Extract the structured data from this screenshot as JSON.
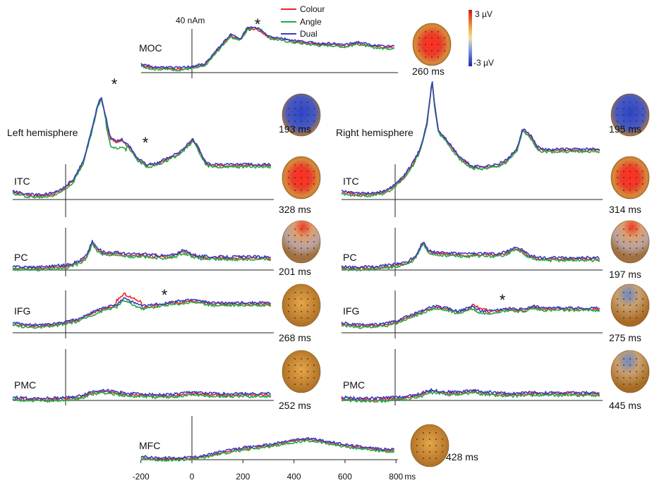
{
  "chart_data": {
    "type": "line",
    "amplitude_scale": "40 nAm",
    "x_unit": "ms",
    "x_ticks": [
      -200,
      0,
      200,
      400,
      600,
      800
    ],
    "x_tick_labels": [
      "-200",
      "0",
      "200",
      "400",
      "600",
      "800"
    ],
    "legend": [
      {
        "name": "Colour",
        "color": "#e8262a"
      },
      {
        "name": "Angle",
        "color": "#27a844"
      },
      {
        "name": "Dual",
        "color": "#3a3dbb"
      }
    ],
    "colorbar": {
      "max_label": "3 µV",
      "min_label": "-3 µV"
    },
    "significance_marker": "*",
    "hemisphere_labels": {
      "left": "Left hemisphere",
      "right": "Right hemisphere"
    },
    "panels": [
      {
        "id": "moc",
        "label": "MOC",
        "map_time": "260 ms",
        "map_color": "red",
        "star": true,
        "key": [
          [
            -200,
            10
          ],
          [
            -150,
            6
          ],
          [
            -100,
            6
          ],
          [
            -50,
            5
          ],
          [
            0,
            7
          ],
          [
            50,
            10
          ],
          [
            100,
            30
          ],
          [
            150,
            50
          ],
          [
            190,
            45
          ],
          [
            220,
            60
          ],
          [
            260,
            58
          ],
          [
            300,
            48
          ],
          [
            350,
            45
          ],
          [
            400,
            42
          ],
          [
            450,
            40
          ],
          [
            500,
            38
          ],
          [
            550,
            38
          ],
          [
            600,
            36
          ],
          [
            650,
            40
          ],
          [
            700,
            36
          ],
          [
            750,
            34
          ]
        ]
      },
      {
        "id": "itc-left",
        "label": "ITC",
        "map_time": "193 ms",
        "map_color": "blue",
        "map_time_2": "328 ms",
        "map_color_2": "red",
        "star": true,
        "star_2": true,
        "key": [
          [
            -200,
            8
          ],
          [
            -150,
            5
          ],
          [
            -100,
            4
          ],
          [
            -50,
            6
          ],
          [
            -20,
            10
          ],
          [
            30,
            22
          ],
          [
            70,
            45
          ],
          [
            100,
            78
          ],
          [
            125,
            110
          ],
          [
            140,
            120
          ],
          [
            155,
            100
          ],
          [
            175,
            72
          ],
          [
            195,
            68
          ],
          [
            220,
            70
          ],
          [
            250,
            62
          ],
          [
            280,
            48
          ],
          [
            320,
            40
          ],
          [
            360,
            42
          ],
          [
            400,
            48
          ],
          [
            450,
            55
          ],
          [
            480,
            65
          ],
          [
            500,
            70
          ],
          [
            520,
            60
          ],
          [
            550,
            42
          ],
          [
            575,
            40
          ]
        ]
      },
      {
        "id": "itc-right",
        "label": "ITC",
        "map_time": "195 ms",
        "map_color": "blue",
        "map_time_2": "314 ms",
        "map_color_2": "red",
        "star": false,
        "key": [
          [
            -200,
            8
          ],
          [
            -150,
            6
          ],
          [
            -100,
            6
          ],
          [
            -50,
            8
          ],
          [
            -20,
            12
          ],
          [
            30,
            25
          ],
          [
            70,
            42
          ],
          [
            100,
            60
          ],
          [
            125,
            90
          ],
          [
            145,
            140
          ],
          [
            155,
            110
          ],
          [
            170,
            80
          ],
          [
            200,
            70
          ],
          [
            250,
            50
          ],
          [
            300,
            38
          ],
          [
            350,
            38
          ],
          [
            400,
            40
          ],
          [
            440,
            46
          ],
          [
            480,
            60
          ],
          [
            500,
            82
          ],
          [
            530,
            75
          ],
          [
            555,
            62
          ],
          [
            575,
            58
          ]
        ]
      },
      {
        "id": "pc-left",
        "label": "PC",
        "map_time": "201 ms",
        "map_color": "red-top",
        "star": false,
        "key": [
          [
            -200,
            2
          ],
          [
            -100,
            2
          ],
          [
            -50,
            3
          ],
          [
            0,
            4
          ],
          [
            50,
            8
          ],
          [
            80,
            14
          ],
          [
            105,
            30
          ],
          [
            125,
            22
          ],
          [
            150,
            18
          ],
          [
            200,
            18
          ],
          [
            250,
            16
          ],
          [
            300,
            16
          ],
          [
            350,
            15
          ],
          [
            400,
            14
          ],
          [
            430,
            16
          ],
          [
            460,
            20
          ],
          [
            480,
            18
          ],
          [
            520,
            14
          ],
          [
            575,
            13
          ]
        ]
      },
      {
        "id": "pc-right",
        "label": "PC",
        "map_time": "197 ms",
        "map_color": "red-top",
        "star": false,
        "key": [
          [
            -200,
            2
          ],
          [
            -100,
            2
          ],
          [
            -50,
            3
          ],
          [
            0,
            5
          ],
          [
            50,
            8
          ],
          [
            80,
            14
          ],
          [
            110,
            30
          ],
          [
            130,
            20
          ],
          [
            160,
            18
          ],
          [
            220,
            17
          ],
          [
            280,
            16
          ],
          [
            340,
            17
          ],
          [
            400,
            16
          ],
          [
            440,
            19
          ],
          [
            470,
            24
          ],
          [
            500,
            20
          ],
          [
            530,
            14
          ],
          [
            575,
            12
          ]
        ]
      },
      {
        "id": "ifg-left",
        "label": "IFG",
        "map_time": "268 ms",
        "map_color": "orange",
        "star": true,
        "key": [
          [
            -200,
            10
          ],
          [
            -150,
            8
          ],
          [
            -100,
            8
          ],
          [
            -50,
            9
          ],
          [
            0,
            12
          ],
          [
            50,
            15
          ],
          [
            100,
            22
          ],
          [
            150,
            28
          ],
          [
            200,
            32
          ],
          [
            230,
            40
          ],
          [
            260,
            35
          ],
          [
            300,
            30
          ],
          [
            350,
            32
          ],
          [
            400,
            34
          ],
          [
            450,
            36
          ],
          [
            500,
            38
          ],
          [
            550,
            35
          ],
          [
            575,
            34
          ]
        ]
      },
      {
        "id": "ifg-right",
        "label": "IFG",
        "map_time": "275 ms",
        "map_color": "blue-top",
        "star": true,
        "key": [
          [
            -200,
            10
          ],
          [
            -150,
            8
          ],
          [
            -100,
            8
          ],
          [
            -50,
            9
          ],
          [
            0,
            12
          ],
          [
            50,
            18
          ],
          [
            100,
            24
          ],
          [
            150,
            30
          ],
          [
            200,
            28
          ],
          [
            250,
            24
          ],
          [
            300,
            30
          ],
          [
            330,
            25
          ],
          [
            360,
            24
          ],
          [
            400,
            26
          ],
          [
            450,
            28
          ],
          [
            500,
            26
          ],
          [
            540,
            30
          ],
          [
            575,
            28
          ]
        ]
      },
      {
        "id": "pmc-left",
        "label": "PMC",
        "map_time": "252 ms",
        "map_color": "orange",
        "star": false,
        "key": [
          [
            -200,
            2
          ],
          [
            -150,
            1
          ],
          [
            -100,
            1
          ],
          [
            -50,
            1
          ],
          [
            0,
            2
          ],
          [
            50,
            3
          ],
          [
            100,
            8
          ],
          [
            140,
            10
          ],
          [
            200,
            8
          ],
          [
            250,
            6
          ],
          [
            300,
            6
          ],
          [
            350,
            5
          ],
          [
            400,
            5
          ],
          [
            450,
            6
          ],
          [
            500,
            8
          ],
          [
            550,
            6
          ],
          [
            575,
            6
          ]
        ]
      },
      {
        "id": "pmc-right",
        "label": "PMC",
        "map_time": "445 ms",
        "map_color": "blue-top",
        "star": false,
        "key": [
          [
            -200,
            2
          ],
          [
            -150,
            1
          ],
          [
            -100,
            1
          ],
          [
            -50,
            1
          ],
          [
            0,
            2
          ],
          [
            50,
            3
          ],
          [
            100,
            6
          ],
          [
            140,
            10
          ],
          [
            200,
            8
          ],
          [
            260,
            8
          ],
          [
            300,
            10
          ],
          [
            350,
            8
          ],
          [
            400,
            7
          ],
          [
            450,
            6
          ],
          [
            500,
            7
          ],
          [
            550,
            7
          ],
          [
            575,
            7
          ]
        ]
      },
      {
        "id": "mfc",
        "label": "MFC",
        "map_time": "428 ms",
        "map_color": "orange",
        "star": false,
        "key": [
          [
            -200,
            3
          ],
          [
            -150,
            1
          ],
          [
            -100,
            1
          ],
          [
            -50,
            1
          ],
          [
            0,
            2
          ],
          [
            50,
            4
          ],
          [
            100,
            8
          ],
          [
            200,
            14
          ],
          [
            300,
            18
          ],
          [
            400,
            24
          ],
          [
            450,
            26
          ],
          [
            500,
            24
          ],
          [
            600,
            18
          ],
          [
            700,
            14
          ],
          [
            750,
            12
          ]
        ]
      }
    ]
  }
}
